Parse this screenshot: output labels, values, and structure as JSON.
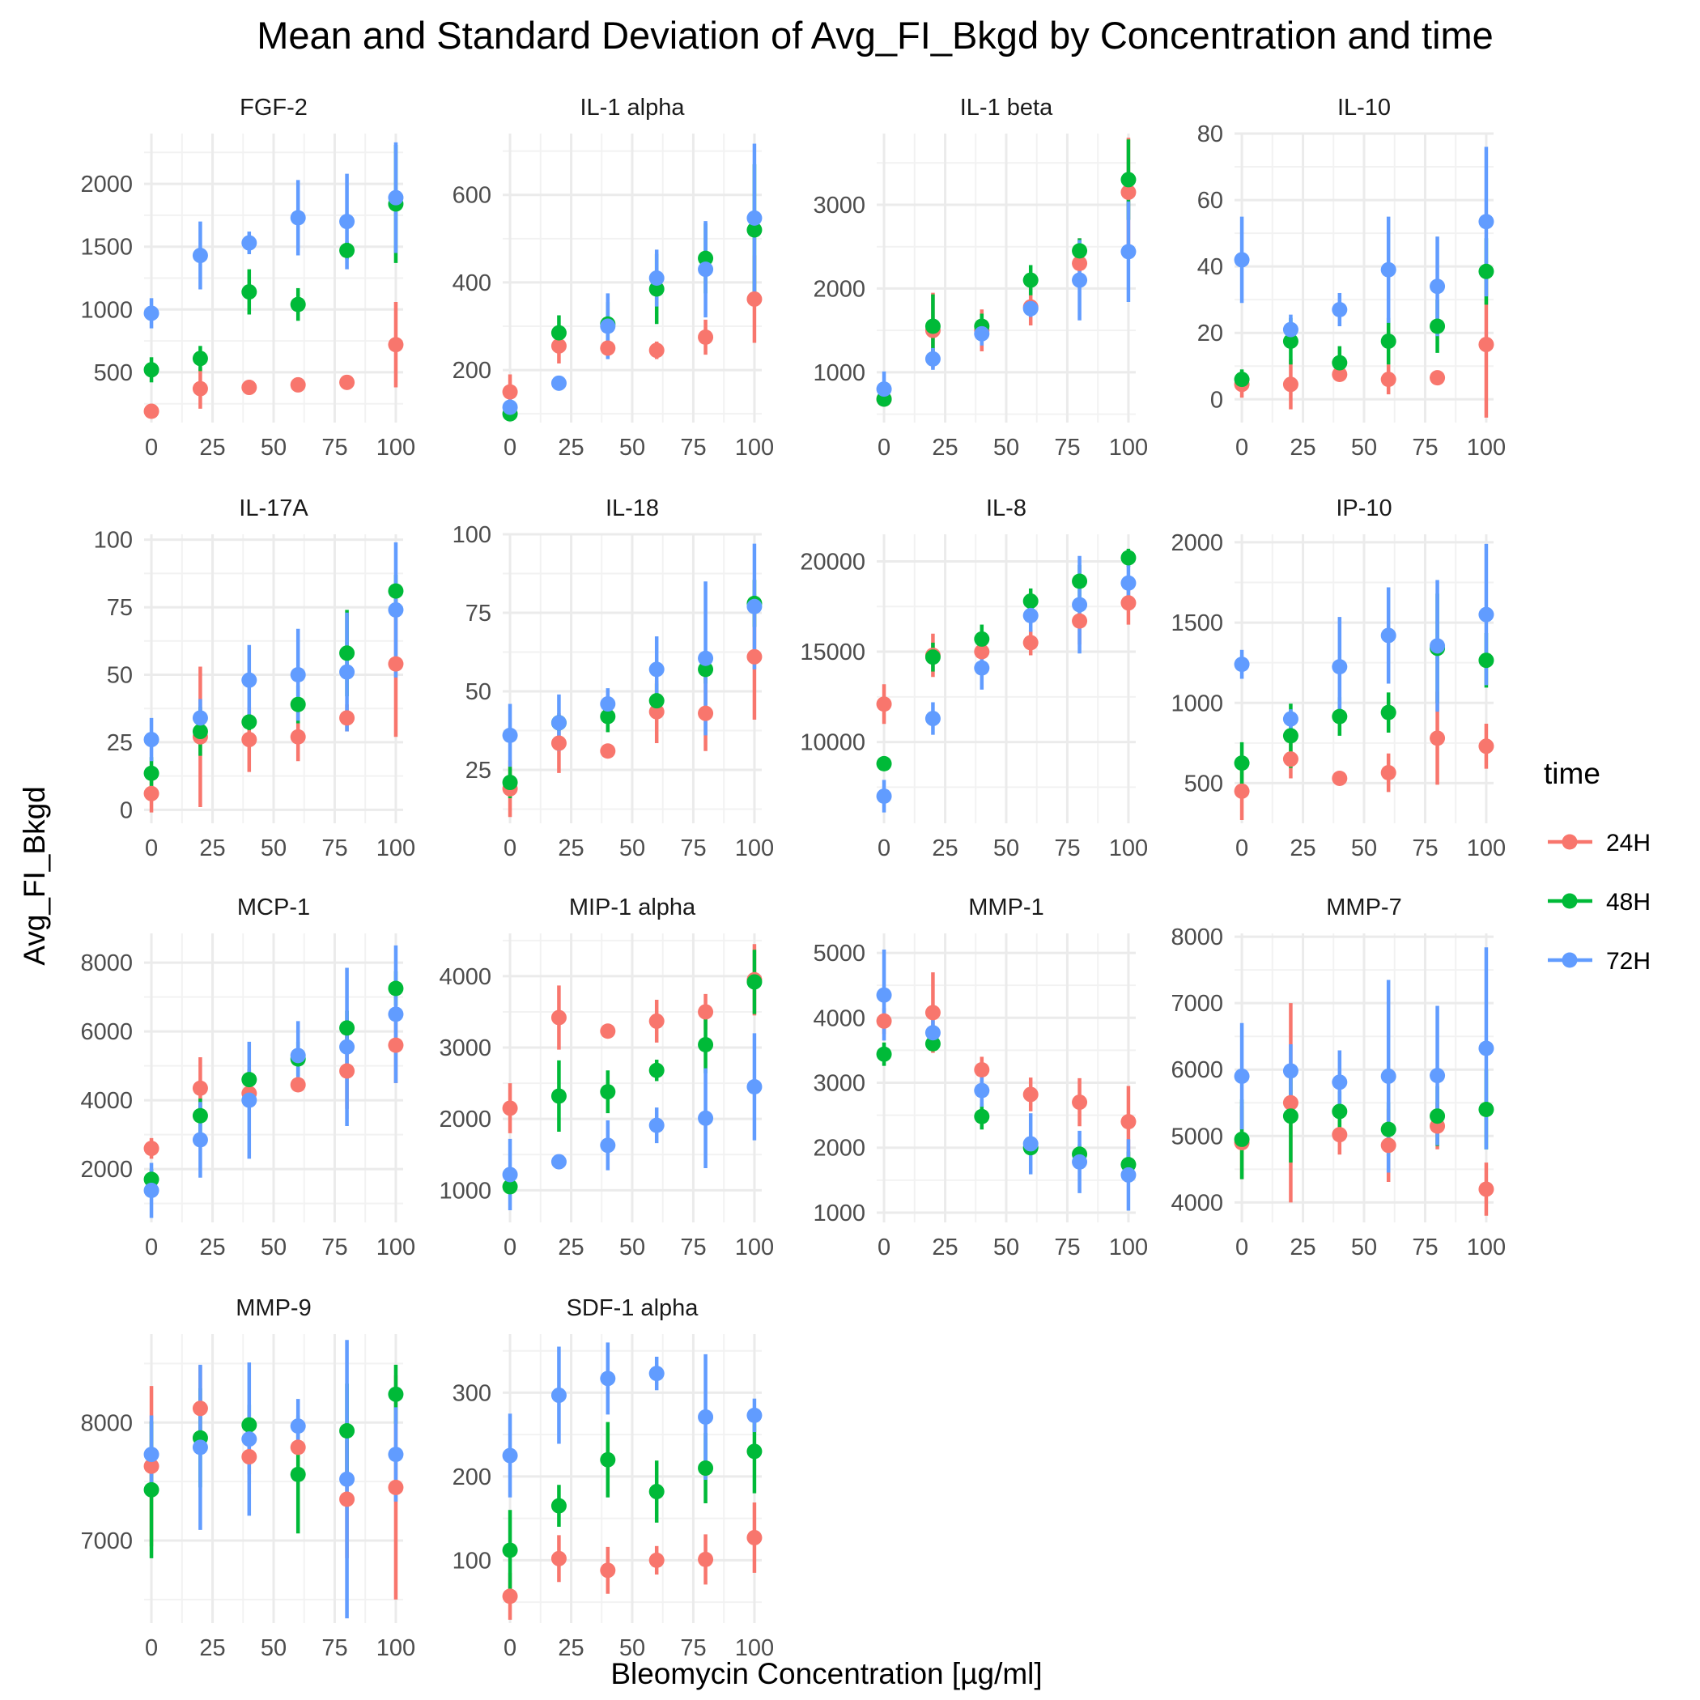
{
  "title": "Mean and Standard Deviation of Avg_FI_Bkgd by Concentration and time",
  "xlabel": "Bleomycin Concentration [µg/ml]",
  "ylabel": "Avg_FI_Bkgd",
  "legend": {
    "title": "time",
    "placement": "right",
    "entries": [
      {
        "label": "24H",
        "color": "#F8766D"
      },
      {
        "label": "48H",
        "color": "#00BA38"
      },
      {
        "label": "72H",
        "color": "#619CFF"
      }
    ]
  },
  "chart_data": {
    "type": "scatter",
    "style": "point-with-error-bars, faceted",
    "grid": true,
    "x": [
      0,
      20,
      40,
      60,
      80,
      100
    ],
    "x_ticks": [
      0,
      25,
      50,
      75,
      100
    ],
    "xlim": [
      -3,
      103
    ],
    "series_names": [
      "24H",
      "48H",
      "72H"
    ],
    "facets": [
      {
        "name": "FGF-2",
        "ylim": [
          100,
          2400
        ],
        "yticks": [
          500,
          1000,
          1500,
          2000
        ],
        "series": [
          {
            "mean": [
              190,
              370,
              380,
              400,
              420,
              720
            ],
            "sd": [
              20,
              160,
              20,
              20,
              20,
              340
            ]
          },
          {
            "mean": [
              520,
              610,
              1140,
              1040,
              1470,
              1840
            ],
            "sd": [
              100,
              100,
              180,
              130,
              70,
              470
            ]
          },
          {
            "mean": [
              970,
              1430,
              1530,
              1730,
              1700,
              1890
            ],
            "sd": [
              120,
              270,
              90,
              300,
              380,
              440
            ]
          }
        ]
      },
      {
        "name": "IL-1 alpha",
        "ylim": [
          80,
          740
        ],
        "yticks": [
          200,
          400,
          600
        ],
        "series": [
          {
            "mean": [
              150,
              255,
              250,
              245,
              275,
              362
            ],
            "sd": [
              40,
              40,
              20,
              20,
              40,
              100
            ]
          },
          {
            "mean": [
              100,
              285,
              305,
              385,
              455,
              520
            ],
            "sd": [
              15,
              40,
              50,
              80,
              80,
              150
            ]
          },
          {
            "mean": [
              115,
              170,
              300,
              410,
              430,
              547
            ],
            "sd": [
              20,
              15,
              75,
              65,
              110,
              170
            ]
          }
        ]
      },
      {
        "name": "IL-1 beta",
        "ylim": [
          400,
          3850
        ],
        "yticks": [
          1000,
          2000,
          3000
        ],
        "series": [
          {
            "mean": [
              680,
              1500,
              1500,
              1780,
              2300,
              3150
            ],
            "sd": [
              50,
              450,
              250,
              220,
              300,
              650
            ]
          },
          {
            "mean": [
              680,
              1550,
              1550,
              2100,
              2450,
              3300
            ],
            "sd": [
              50,
              380,
              150,
              180,
              150,
              480
            ]
          },
          {
            "mean": [
              800,
              1160,
              1460,
              1760,
              2100,
              2440
            ],
            "sd": [
              210,
              130,
              140,
              100,
              480,
              600
            ]
          }
        ]
      },
      {
        "name": "IL-10",
        "ylim": [
          -7,
          80
        ],
        "yticks": [
          0,
          20,
          40,
          60,
          80
        ],
        "series": [
          {
            "mean": [
              4.5,
              4.5,
              7.5,
              6,
              6.5,
              16.5
            ],
            "sd": [
              4,
              7.5,
              2,
              4.5,
              1.5,
              22
            ]
          },
          {
            "mean": [
              6,
              17.5,
              11,
              17.5,
              22,
              38.5
            ],
            "sd": [
              3,
              7,
              5,
              7,
              8,
              10
            ]
          },
          {
            "mean": [
              42,
              21,
              27,
              39,
              34,
              53.5
            ],
            "sd": [
              13,
              4.5,
              5,
              16,
              15,
              22.5
            ]
          }
        ]
      },
      {
        "name": "IL-17A",
        "ylim": [
          -5,
          102
        ],
        "yticks": [
          0,
          25,
          50,
          75,
          100
        ],
        "series": [
          {
            "mean": [
              6,
              27,
              26,
              27,
              34,
              54
            ],
            "sd": [
              7,
              26,
              12,
              9,
              5,
              27
            ]
          },
          {
            "mean": [
              13.5,
              29,
              32.5,
              39,
              58,
              81
            ],
            "sd": [
              6,
              9,
              3,
              7,
              16,
              6
            ]
          },
          {
            "mean": [
              26,
              34,
              48,
              50,
              51,
              74
            ],
            "sd": [
              8,
              7,
              13,
              17,
              22,
              25
            ]
          }
        ]
      },
      {
        "name": "IL-18",
        "ylim": [
          8,
          100
        ],
        "yticks": [
          25,
          50,
          75,
          100
        ],
        "series": [
          {
            "mean": [
              19,
              33.5,
              31,
              43.5,
              43,
              61
            ],
            "sd": [
              9,
              9.5,
              1.5,
              10,
              12,
              20
            ]
          },
          {
            "mean": [
              21,
              40,
              42,
              47,
              57,
              78
            ],
            "sd": [
              5,
              2.5,
              5,
              5.5,
              4.5,
              7.5
            ]
          },
          {
            "mean": [
              36,
              40,
              46,
              57,
              60.5,
              77
            ],
            "sd": [
              10,
              9,
              5,
              10.5,
              24.5,
              20
            ]
          }
        ]
      },
      {
        "name": "IL-8",
        "ylim": [
          5500,
          21500
        ],
        "yticks": [
          10000,
          15000,
          20000
        ],
        "series": [
          {
            "mean": [
              12100,
              14800,
              15000,
              15500,
              16700,
              17700
            ],
            "sd": [
              1100,
              1200,
              800,
              700,
              1300,
              1200
            ]
          },
          {
            "mean": [
              8800,
              14700,
              15700,
              17800,
              18900,
              20200
            ],
            "sd": [
              200,
              800,
              800,
              700,
              900,
              500
            ]
          },
          {
            "mean": [
              7000,
              11300,
              14100,
              17000,
              17600,
              18800
            ],
            "sd": [
              900,
              900,
              1200,
              900,
              2700,
              1200
            ]
          }
        ]
      },
      {
        "name": "IP-10",
        "ylim": [
          250,
          2050
        ],
        "yticks": [
          500,
          1000,
          1500,
          2000
        ],
        "series": [
          {
            "mean": [
              450,
              650,
              530,
              565,
              780,
              730
            ],
            "sd": [
              180,
              120,
              30,
              120,
              290,
              140
            ]
          },
          {
            "mean": [
              625,
              795,
              915,
              940,
              1340,
              1265
            ],
            "sd": [
              130,
              200,
              120,
              125,
              340,
              170
            ]
          },
          {
            "mean": [
              1240,
              900,
              1225,
              1420,
              1355,
              1550
            ],
            "sd": [
              90,
              60,
              310,
              300,
              410,
              440
            ]
          }
        ]
      },
      {
        "name": "MCP-1",
        "ylim": [
          450,
          8850
        ],
        "yticks": [
          2000,
          4000,
          6000,
          8000
        ],
        "series": [
          {
            "mean": [
              2600,
              4350,
              4200,
              4450,
              4850,
              5600
            ],
            "sd": [
              300,
              900,
              200,
              200,
              1100,
              1100
            ]
          },
          {
            "mean": [
              1700,
              3550,
              4600,
              5200,
              6100,
              7250
            ],
            "sd": [
              300,
              500,
              300,
              500,
              500,
              500
            ]
          },
          {
            "mean": [
              1380,
              2850,
              4000,
              5300,
              5550,
              6500
            ],
            "sd": [
              800,
              1100,
              1700,
              1000,
              2300,
              2000
            ]
          }
        ]
      },
      {
        "name": "MIP-1 alpha",
        "ylim": [
          550,
          4600
        ],
        "yticks": [
          1000,
          2000,
          3000,
          4000
        ],
        "series": [
          {
            "mean": [
              2150,
              3420,
              3230,
              3370,
              3500,
              3950
            ],
            "sd": [
              350,
              450,
              50,
              300,
              250,
              500
            ]
          },
          {
            "mean": [
              1050,
              2320,
              2380,
              2680,
              3040,
              3920
            ],
            "sd": [
              100,
              500,
              300,
              150,
              400,
              450
            ]
          },
          {
            "mean": [
              1220,
              1400,
              1630,
              1910,
              2010,
              2450
            ],
            "sd": [
              500,
              100,
              350,
              250,
              700,
              750
            ]
          }
        ]
      },
      {
        "name": "MMP-1",
        "ylim": [
          850,
          5300
        ],
        "yticks": [
          1000,
          2000,
          3000,
          4000,
          5000
        ],
        "series": [
          {
            "mean": [
              3950,
              4080,
              3200,
              2820,
              2700,
              2400
            ],
            "sd": [
              200,
              620,
              200,
              260,
              370,
              550
            ]
          },
          {
            "mean": [
              3440,
              3600,
              2480,
              2000,
              1900,
              1740
            ],
            "sd": [
              180,
              100,
              200,
              100,
              150,
              200
            ]
          },
          {
            "mean": [
              4350,
              3770,
              2880,
              2060,
              1780,
              1580
            ],
            "sd": [
              700,
              200,
              250,
              470,
              480,
              550
            ]
          }
        ]
      },
      {
        "name": "MMP-7",
        "ylim": [
          3700,
          8050
        ],
        "yticks": [
          4000,
          5000,
          6000,
          7000,
          8000
        ],
        "series": [
          {
            "mean": [
              4900,
              5500,
              5020,
              4860,
              5150,
              4200
            ],
            "sd": [
              550,
              1500,
              300,
              550,
              350,
              400
            ]
          },
          {
            "mean": [
              4950,
              5300,
              5370,
              5100,
              5300,
              5400
            ],
            "sd": [
              600,
              700,
              300,
              400,
              450,
              600
            ]
          },
          {
            "mean": [
              5900,
              5980,
              5810,
              5900,
              5910,
              6320
            ],
            "sd": [
              800,
              400,
              480,
              1450,
              1050,
              1520
            ]
          }
        ]
      },
      {
        "name": "MMP-9",
        "ylim": [
          6300,
          8750
        ],
        "yticks": [
          7000,
          8000
        ],
        "series": [
          {
            "mean": [
              7630,
              8120,
              7710,
              7790,
              7350,
              7450
            ],
            "sd": [
              680,
              360,
              150,
              250,
              500,
              950
            ]
          },
          {
            "mean": [
              7430,
              7870,
              7980,
              7560,
              7930,
              8240
            ],
            "sd": [
              580,
              420,
              170,
              500,
              400,
              250
            ]
          },
          {
            "mean": [
              7730,
              7790,
              7860,
              7970,
              7520,
              7730
            ],
            "sd": [
              330,
              700,
              650,
              230,
              1180,
              400
            ]
          }
        ]
      },
      {
        "name": "SDF-1 alpha",
        "ylim": [
          25,
          370
        ],
        "yticks": [
          100,
          200,
          300
        ],
        "series": [
          {
            "mean": [
              57,
              102,
              88,
              100,
              101,
              127
            ],
            "sd": [
              28,
              28,
              28,
              17,
              30,
              42
            ]
          },
          {
            "mean": [
              112,
              165,
              220,
              182,
              210,
              230
            ],
            "sd": [
              48,
              25,
              45,
              37,
              42,
              50
            ]
          },
          {
            "mean": [
              225,
              297,
              317,
              323,
              271,
              273
            ],
            "sd": [
              50,
              58,
              43,
              20,
              75,
              20
            ]
          }
        ]
      }
    ]
  }
}
